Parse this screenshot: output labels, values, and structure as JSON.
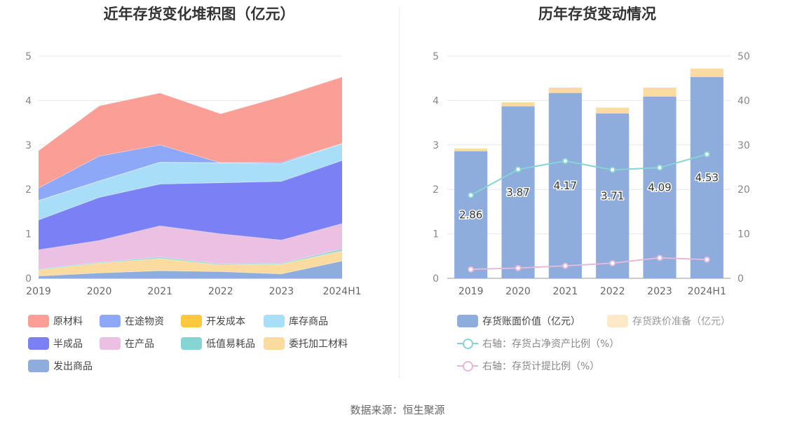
{
  "source_text": "数据来源：恒生聚源",
  "chart_data": [
    {
      "type": "area",
      "stacked": true,
      "title": "近年存货变化堆积图（亿元）",
      "categories": [
        "2019",
        "2020",
        "2021",
        "2022",
        "2023",
        "2024H1"
      ],
      "y_ticks": [
        "0",
        "1",
        "2",
        "3",
        "4",
        "5"
      ],
      "ylim": [
        0,
        5
      ],
      "grid": true,
      "legend_position": "bottom",
      "series": [
        {
          "name": "发出商品",
          "color": "#8eacdc",
          "values": [
            0.05,
            0.12,
            0.17,
            0.15,
            0.1,
            0.39
          ]
        },
        {
          "name": "委托加工材料",
          "color": "#fcdba0",
          "values": [
            0.14,
            0.22,
            0.28,
            0.15,
            0.22,
            0.23
          ]
        },
        {
          "name": "低值易耗品",
          "color": "#86d4d4",
          "values": [
            0.02,
            0.02,
            0.03,
            0.02,
            0.02,
            0.04
          ]
        },
        {
          "name": "在产品",
          "color": "#ecc0e2",
          "values": [
            0.43,
            0.49,
            0.7,
            0.68,
            0.52,
            0.57
          ]
        },
        {
          "name": "半成品",
          "color": "#7b80f4",
          "values": [
            0.67,
            0.97,
            0.94,
            1.15,
            1.32,
            1.42
          ]
        },
        {
          "name": "库存商品",
          "color": "#a8def8",
          "values": [
            0.44,
            0.37,
            0.49,
            0.45,
            0.4,
            0.38
          ]
        },
        {
          "name": "开发成本",
          "color": "#fcc83e",
          "values": [
            0,
            0,
            0,
            0,
            0,
            0
          ]
        },
        {
          "name": "在途物资",
          "color": "#8ea8f8",
          "values": [
            0.28,
            0.56,
            0.39,
            0.0,
            0.03,
            0.0
          ]
        },
        {
          "name": "原材料",
          "color": "#fb9e95",
          "values": [
            0.84,
            1.13,
            1.17,
            1.1,
            1.48,
            1.5
          ]
        }
      ],
      "legend_order": [
        "原材料",
        "在途物资",
        "开发成本",
        "库存商品",
        "半成品",
        "在产品",
        "低值易耗品",
        "委托加工材料",
        "发出商品"
      ]
    },
    {
      "type": "bar",
      "stacked": true,
      "title": "历年存货变动情况",
      "categories": [
        "2019",
        "2020",
        "2021",
        "2022",
        "2023",
        "2024H1"
      ],
      "y_ticks_left": [
        "0",
        "1",
        "2",
        "3",
        "4",
        "5"
      ],
      "ylim_left": [
        0,
        5
      ],
      "y_ticks_right": [
        "0",
        "10",
        "20",
        "30",
        "40",
        "50"
      ],
      "ylim_right": [
        0,
        50
      ],
      "grid": true,
      "legend_position": "bottom",
      "bar_series": [
        {
          "name": "存货账面价值（亿元）",
          "color": "#8eacdc",
          "values": [
            2.86,
            3.87,
            4.17,
            3.71,
            4.09,
            4.53
          ],
          "labels": [
            "2.86",
            "3.87",
            "4.17",
            "3.71",
            "4.09",
            "4.53"
          ]
        },
        {
          "name": "存货跌价准备（亿元）",
          "color": "#fcdba0",
          "values": [
            0.06,
            0.09,
            0.12,
            0.13,
            0.2,
            0.19
          ]
        }
      ],
      "line_series": [
        {
          "name": "右轴：存货占净资产比例（%）",
          "color": "#86d4d4",
          "values": [
            18.7,
            24.5,
            26.4,
            24.4,
            24.9,
            27.9
          ]
        },
        {
          "name": "右轴：存货计提比例（%）",
          "color": "#e6b8dc",
          "values": [
            2.0,
            2.3,
            2.8,
            3.4,
            4.6,
            4.2
          ]
        }
      ]
    }
  ]
}
